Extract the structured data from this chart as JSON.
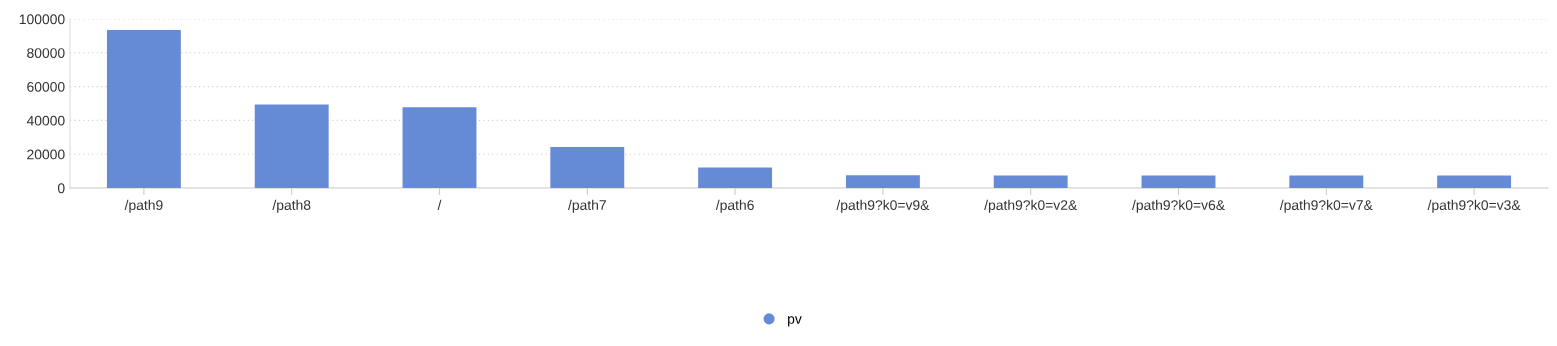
{
  "chart_data": {
    "type": "bar",
    "categories": [
      "/path9",
      "/path8",
      "/",
      "/path7",
      "/path6",
      "/path9?k0=v9&",
      "/path9?k0=v2&",
      "/path9?k0=v6&",
      "/path9?k0=v7&",
      "/path9?k0=v3&"
    ],
    "series": [
      {
        "name": "pv",
        "color": "#668bd6",
        "values": [
          93500,
          49400,
          47800,
          24300,
          12100,
          7500,
          7400,
          7400,
          7400,
          7400
        ]
      }
    ],
    "ylim": [
      0,
      100000
    ],
    "yticks": [
      0,
      20000,
      40000,
      60000,
      80000,
      100000
    ],
    "grid": "y",
    "legend": "bottom"
  }
}
